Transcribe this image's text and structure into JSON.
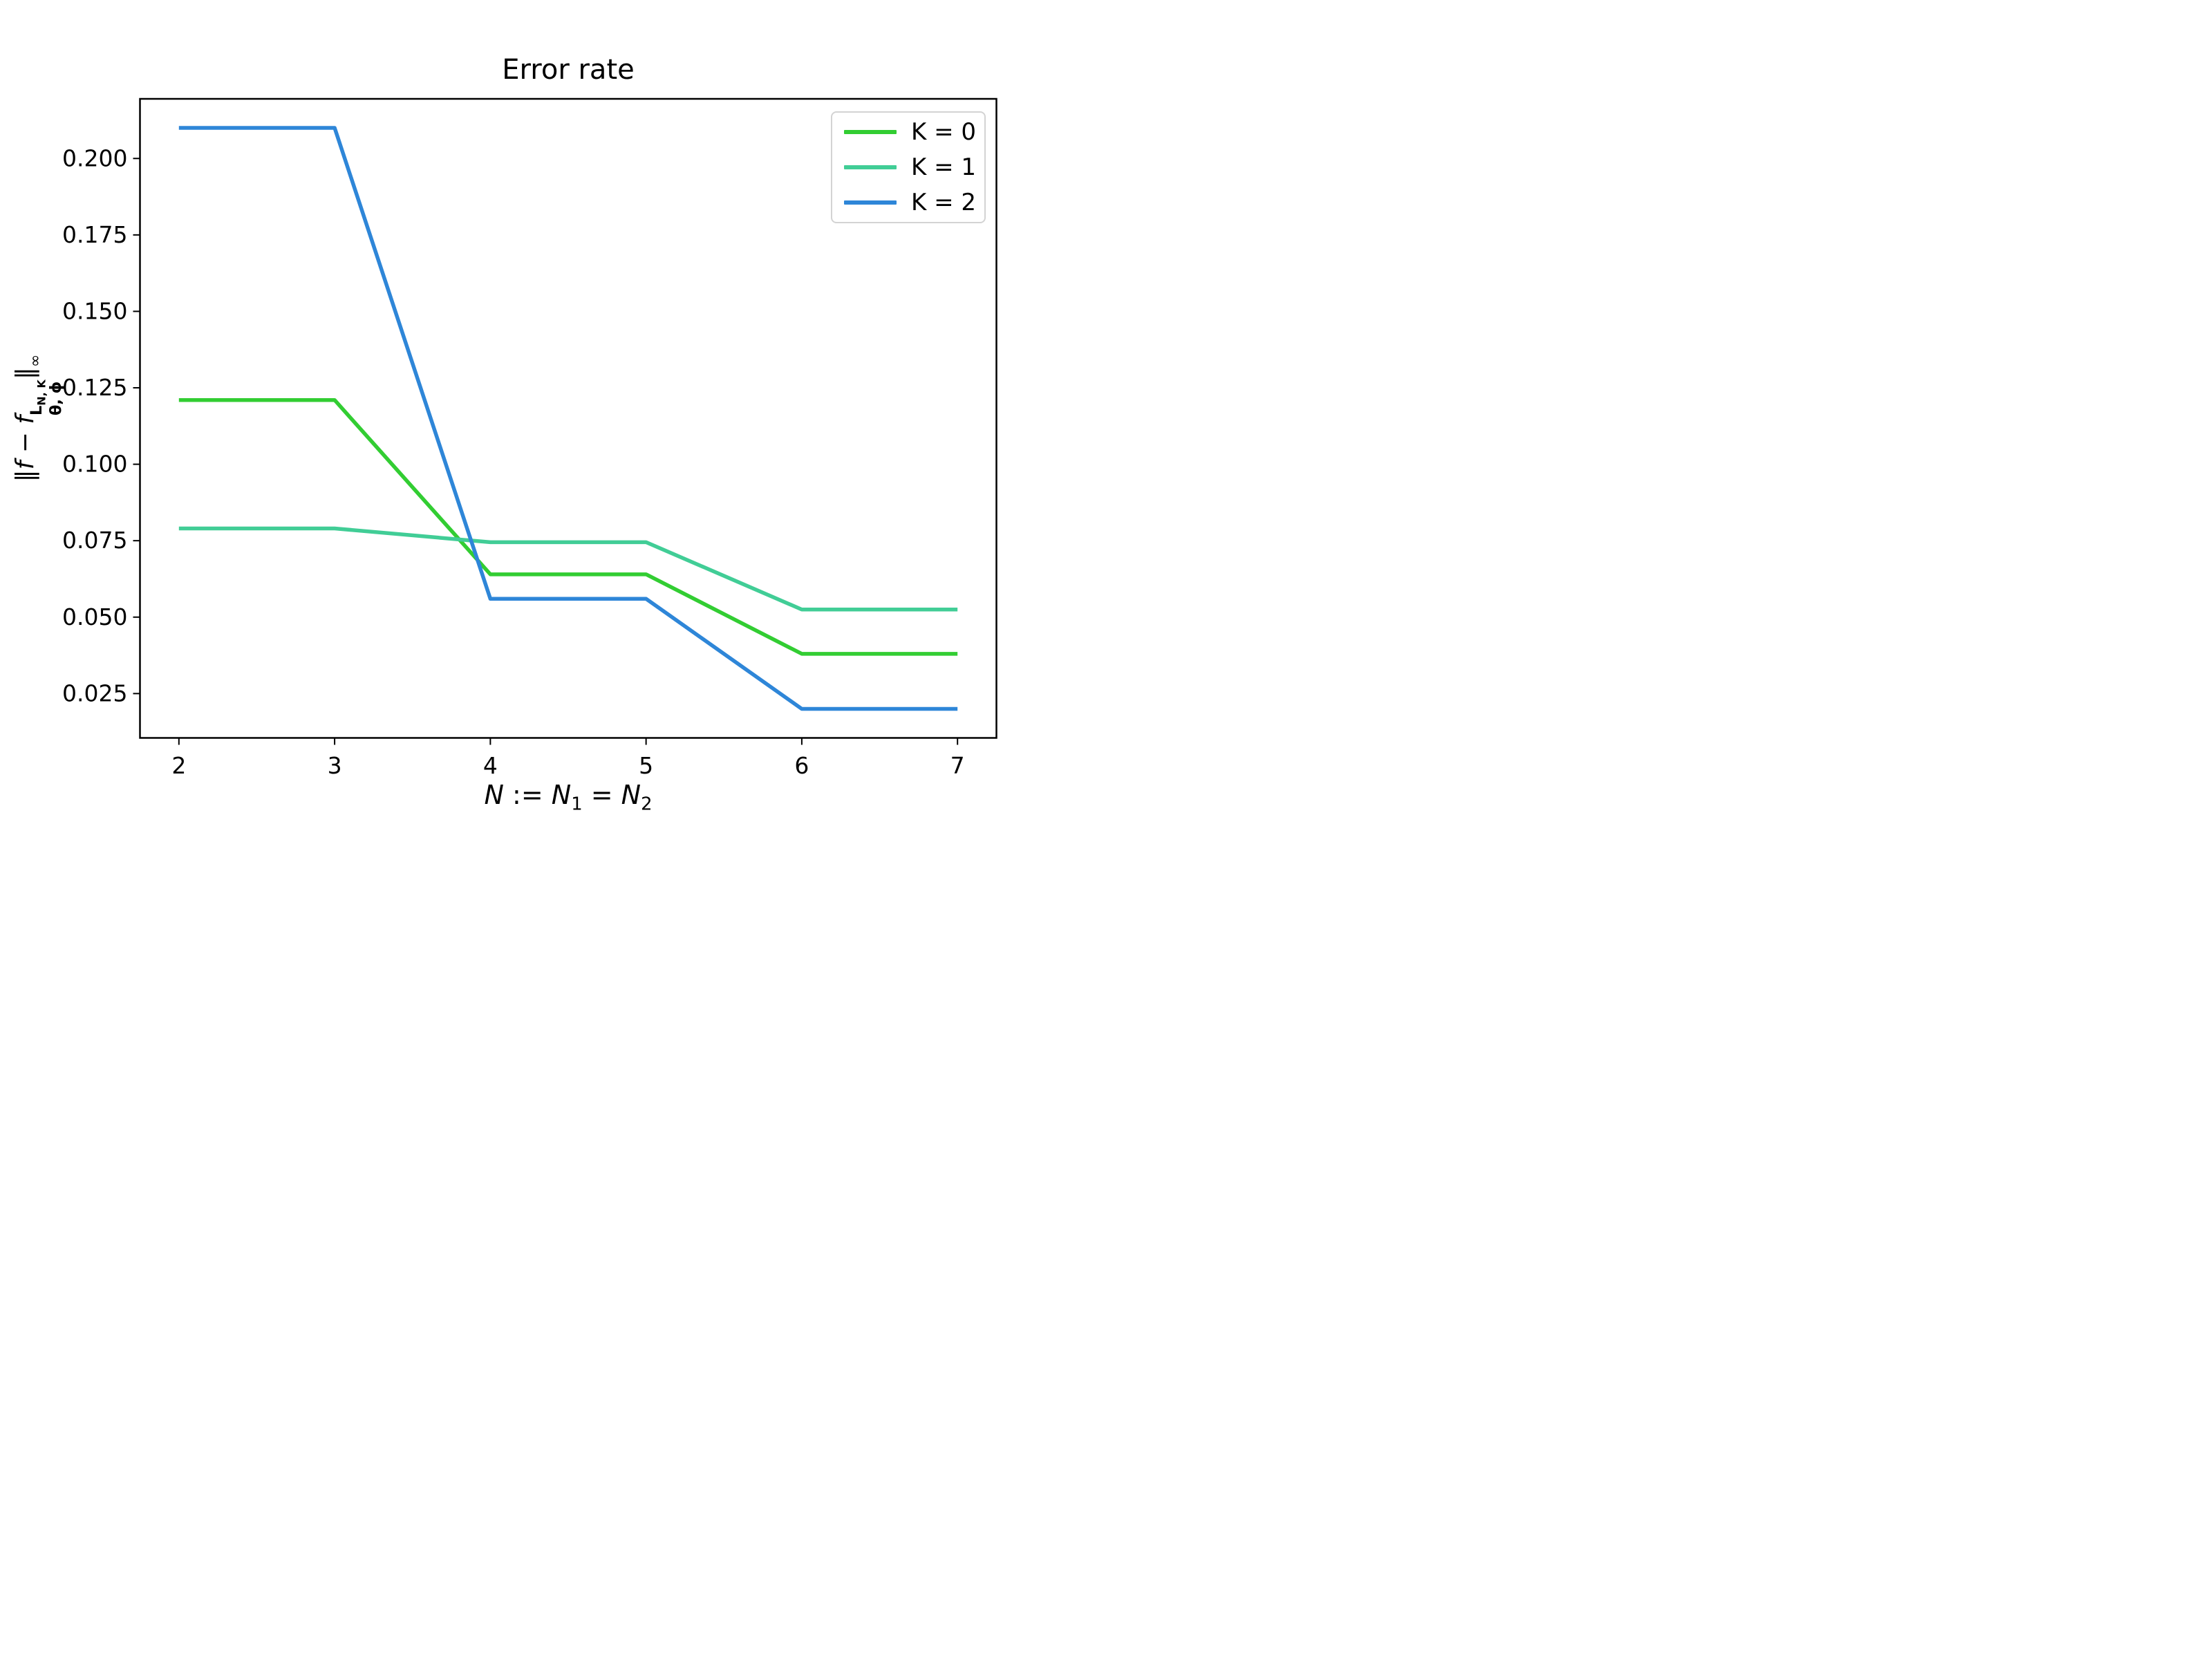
{
  "title": "Error rate",
  "chart_data": {
    "type": "line",
    "x": [
      2,
      3,
      4,
      5,
      6,
      7
    ],
    "series": [
      {
        "name": "K = 0",
        "color": "#32cd32",
        "values": [
          0.121,
          0.121,
          0.064,
          0.064,
          0.038,
          0.038
        ]
      },
      {
        "name": "K = 1",
        "color": "#41cd96",
        "values": [
          0.079,
          0.079,
          0.0745,
          0.0745,
          0.0525,
          0.0525
        ]
      },
      {
        "name": "K = 2",
        "color": "#2e86d8",
        "values": [
          0.21,
          0.21,
          0.056,
          0.056,
          0.02,
          0.02
        ]
      }
    ],
    "title": "Error rate",
    "xlabel": "N := N1 = N2",
    "ylabel": "||f - f^{L_N,K}_{theta,phi}||_inf",
    "xlim": [
      1.75,
      7.25
    ],
    "ylim": [
      0.0105,
      0.2195
    ],
    "x_ticks": [
      2,
      3,
      4,
      5,
      6,
      7
    ],
    "x_tick_labels": [
      "2",
      "3",
      "4",
      "5",
      "6",
      "7"
    ],
    "y_ticks": [
      0.025,
      0.05,
      0.075,
      0.1,
      0.125,
      0.15,
      0.175,
      0.2
    ],
    "y_tick_labels": [
      "0.025",
      "0.050",
      "0.075",
      "0.100",
      "0.125",
      "0.150",
      "0.175",
      "0.200"
    ],
    "grid": false,
    "legend_position": "upper right",
    "axes_color": "#000000",
    "background_color": "#ffffff"
  },
  "xlabel_parts": {
    "n": "N",
    "assign": " := ",
    "n1": "N",
    "s1": "1",
    "eq": " = ",
    "n2": "N",
    "s2": "2"
  },
  "ylabel_parts": {
    "open": "‖",
    "f1": "f",
    "minus": " − ",
    "f2": "f",
    "sup": "L",
    "sup_sub": "N, K",
    "sub": "θ, ϕ",
    "close": "‖",
    "inf": "∞"
  },
  "legend": {
    "entries": [
      {
        "label": "K = 0"
      },
      {
        "label": "K = 1"
      },
      {
        "label": "K = 2"
      }
    ]
  }
}
